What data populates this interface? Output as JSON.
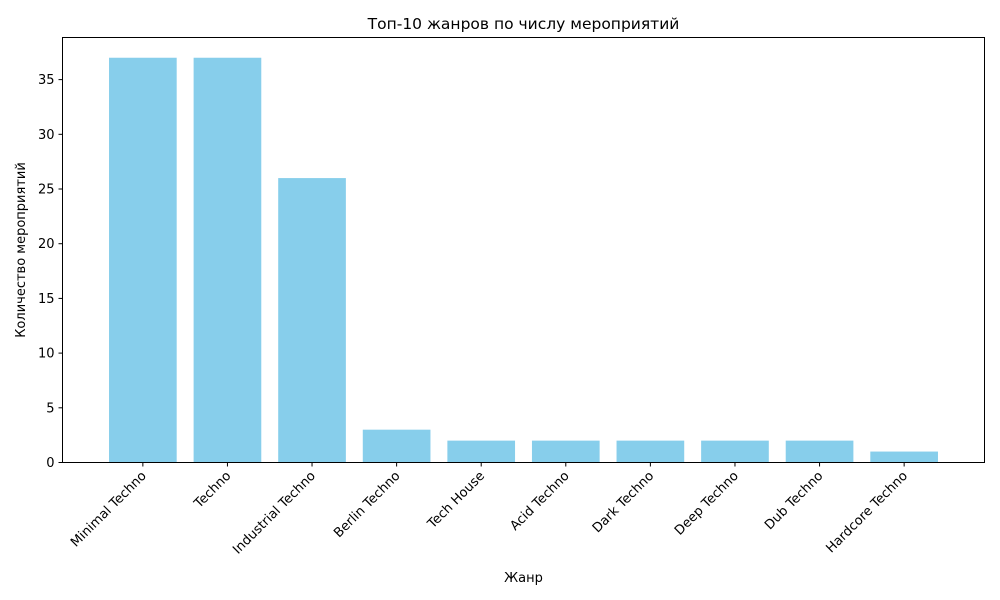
{
  "chart_data": {
    "type": "bar",
    "title": "Топ-10 жанров по числу мероприятий",
    "xlabel": "Жанр",
    "ylabel": "Количество мероприятий",
    "categories": [
      "Minimal Techno",
      "Techno",
      "Industrial Techno",
      "Berlin Techno",
      "Tech House",
      "Acid Techno",
      "Dark Techno",
      "Deep Techno",
      "Dub Techno",
      "Hardcore Techno"
    ],
    "values": [
      37,
      37,
      26,
      3,
      2,
      2,
      2,
      2,
      2,
      1
    ],
    "ylim": [
      0,
      38.85
    ],
    "yticks": [
      0,
      5,
      10,
      15,
      20,
      25,
      30,
      35
    ],
    "bar_color": "#87CEEB",
    "grid": false,
    "legend": "none"
  }
}
